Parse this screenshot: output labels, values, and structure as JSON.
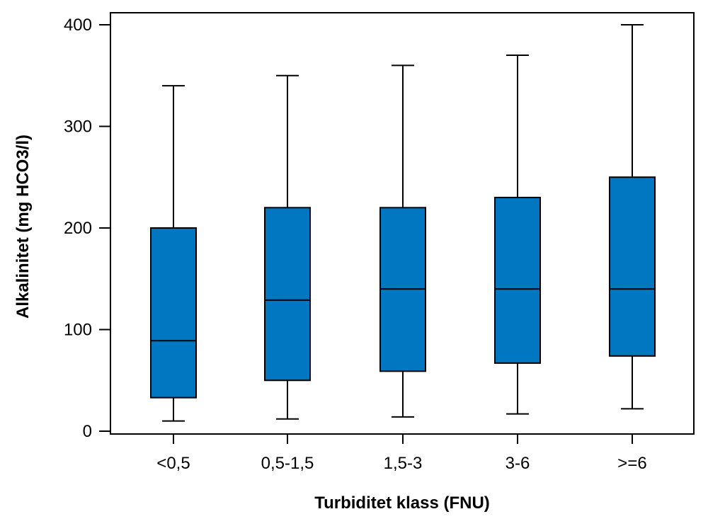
{
  "chart_data": {
    "type": "boxplot",
    "title": "",
    "xlabel": "Turbiditet klass (FNU)",
    "ylabel": "Alkalinitet (mg HCO3/l)",
    "ylim": [
      0,
      400
    ],
    "yticks": [
      0,
      100,
      200,
      300,
      400
    ],
    "grid": false,
    "legend": "none",
    "box_color": "#0077C0",
    "categories": [
      "<0,5",
      "0,5-1,5",
      "1,5-3",
      "3-6",
      ">=6"
    ],
    "boxes": [
      {
        "category": "<0,5",
        "whisker_low": 10,
        "q1": 33,
        "median": 89,
        "q3": 200,
        "whisker_high": 340
      },
      {
        "category": "0,5-1,5",
        "whisker_low": 12,
        "q1": 50,
        "median": 129,
        "q3": 220,
        "whisker_high": 350
      },
      {
        "category": "1,5-3",
        "whisker_low": 14,
        "q1": 59,
        "median": 140,
        "q3": 220,
        "whisker_high": 360
      },
      {
        "category": "3-6",
        "whisker_low": 17,
        "q1": 67,
        "median": 140,
        "q3": 230,
        "whisker_high": 370
      },
      {
        "category": ">=6",
        "whisker_low": 22,
        "q1": 74,
        "median": 140,
        "q3": 250,
        "whisker_high": 400
      }
    ]
  }
}
